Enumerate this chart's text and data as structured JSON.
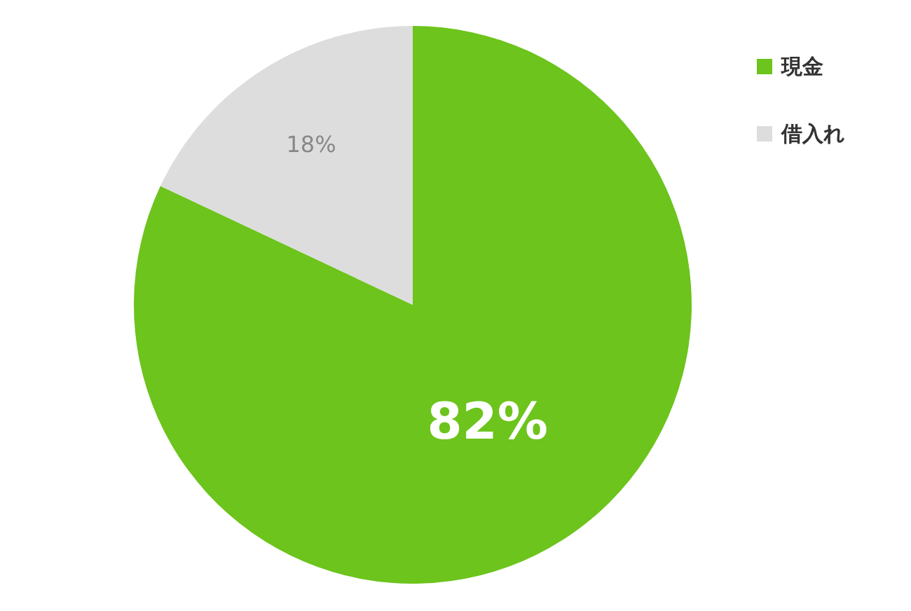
{
  "chart_data": {
    "type": "pie",
    "categories": [
      "現金",
      "借入れ"
    ],
    "values": [
      82,
      18
    ],
    "colors": [
      "#6cc41c",
      "#dddddd"
    ],
    "value_labels": [
      "82%",
      "18%"
    ],
    "legend": "top right"
  }
}
